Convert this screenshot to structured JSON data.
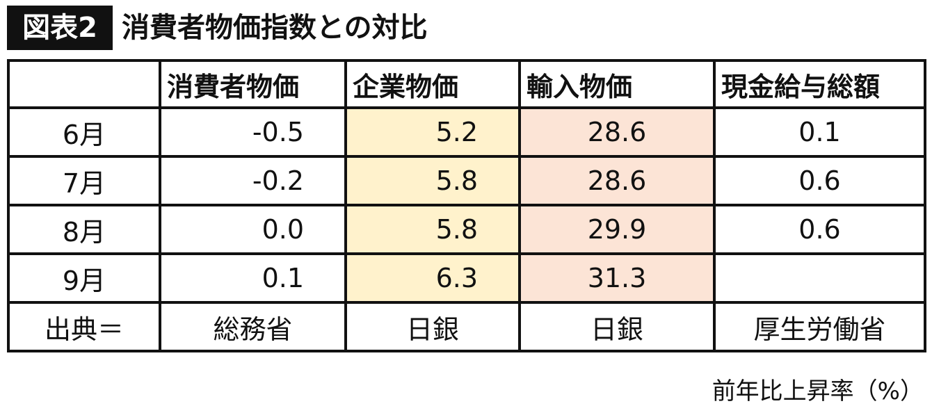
{
  "title": {
    "badge": "図表2",
    "text": "消費者物価指数との対比"
  },
  "colors": {
    "corporate": "#fff2cc",
    "import": "#fce4d6"
  },
  "table": {
    "headers": [
      "",
      "消費者物価",
      "企業物価",
      "輸入物価",
      "現金給与総額"
    ],
    "rows": [
      [
        "6月",
        "-0.5",
        "5.2",
        "28.6",
        "0.1"
      ],
      [
        "7月",
        "-0.2",
        "5.8",
        "28.6",
        "0.6"
      ],
      [
        "8月",
        "0.0",
        "5.8",
        "29.9",
        "0.6"
      ],
      [
        "9月",
        "0.1",
        "6.3",
        "31.3",
        ""
      ]
    ],
    "source": [
      "出典＝",
      "総務省",
      "日銀",
      "日銀",
      "厚生労働省"
    ]
  },
  "note": "前年比上昇率（%）"
}
